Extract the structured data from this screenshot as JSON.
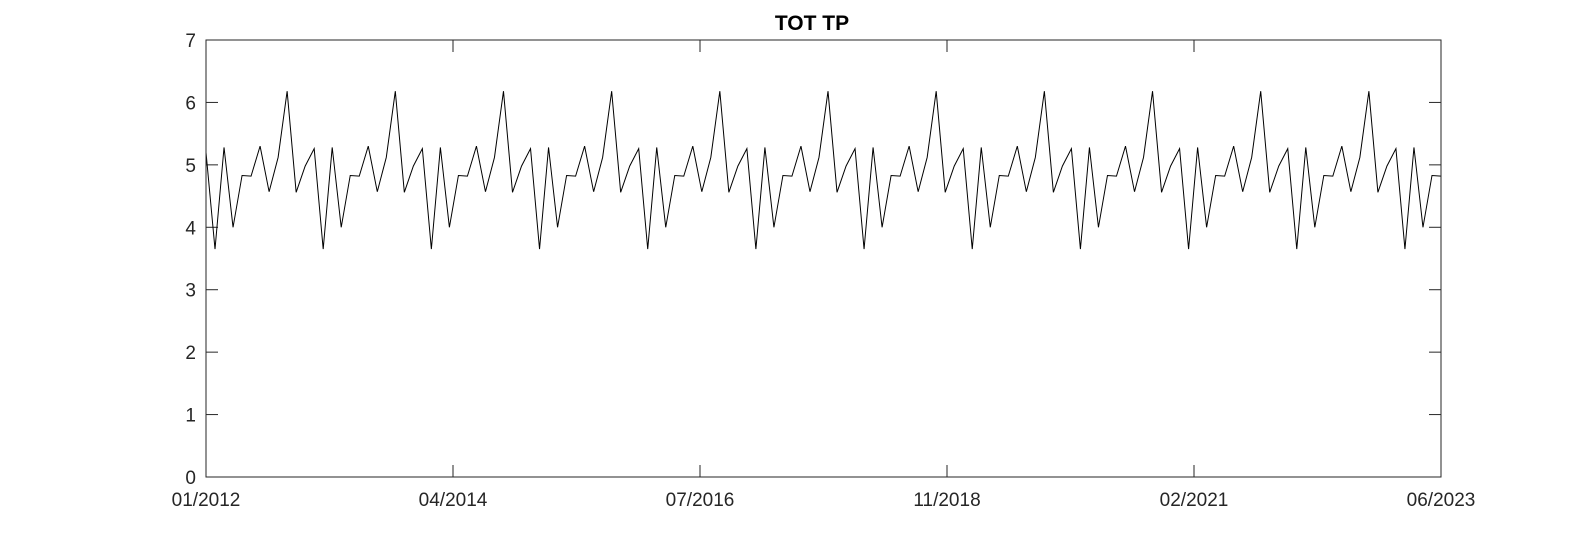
{
  "chart_data": {
    "type": "line",
    "title": "TOT TP",
    "xlabel": "",
    "ylabel": "",
    "x_range": [
      "01/2012",
      "06/2023"
    ],
    "ylim": [
      0,
      7
    ],
    "yticks": [
      0,
      1,
      2,
      3,
      4,
      5,
      6,
      7
    ],
    "xtick_labels": [
      "01/2012",
      "04/2014",
      "07/2016",
      "11/2018",
      "02/2021",
      "06/2023"
    ],
    "grid": false,
    "legend": "none",
    "line_color": "#000000",
    "series": [
      {
        "x_start": "01/2012",
        "x_end": "06/2023",
        "values": [
          5.2,
          3.65,
          5.28,
          4.0,
          4.83,
          4.82,
          5.3,
          4.57,
          5.12,
          6.18,
          4.56,
          4.98,
          5.26,
          3.65,
          5.28,
          4.0,
          4.83,
          4.82,
          5.3,
          4.57,
          5.12,
          6.18,
          4.56,
          4.98,
          5.26,
          3.65,
          5.28,
          4.0,
          4.83,
          4.82,
          5.3,
          4.57,
          5.12,
          6.18,
          4.56,
          4.98,
          5.26,
          3.65,
          5.28,
          4.0,
          4.83,
          4.82,
          5.3,
          4.57,
          5.12,
          6.18,
          4.56,
          4.98,
          5.26,
          3.65,
          5.28,
          4.0,
          4.83,
          4.82,
          5.3,
          4.57,
          5.12,
          6.18,
          4.56,
          4.98,
          5.26,
          3.65,
          5.28,
          4.0,
          4.83,
          4.82,
          5.3,
          4.57,
          5.12,
          6.18,
          4.56,
          4.98,
          5.26,
          3.65,
          5.28,
          4.0,
          4.83,
          4.82,
          5.3,
          4.57,
          5.12,
          6.18,
          4.56,
          4.98,
          5.26,
          3.65,
          5.28,
          4.0,
          4.83,
          4.82,
          5.3,
          4.57,
          5.12,
          6.18,
          4.56,
          4.98,
          5.26,
          3.65,
          5.28,
          4.0,
          4.83,
          4.82,
          5.3,
          4.57,
          5.12,
          6.18,
          4.56,
          4.98,
          5.26,
          3.65,
          5.28,
          4.0,
          4.83,
          4.82,
          5.3,
          4.57,
          5.12,
          6.18,
          4.56,
          4.98,
          5.26,
          3.65,
          5.28,
          4.0,
          4.83,
          4.82,
          5.3,
          4.57,
          5.12,
          6.18,
          4.56,
          4.98,
          5.26,
          3.65,
          5.28,
          4.0,
          4.83,
          4.82
        ]
      }
    ]
  }
}
